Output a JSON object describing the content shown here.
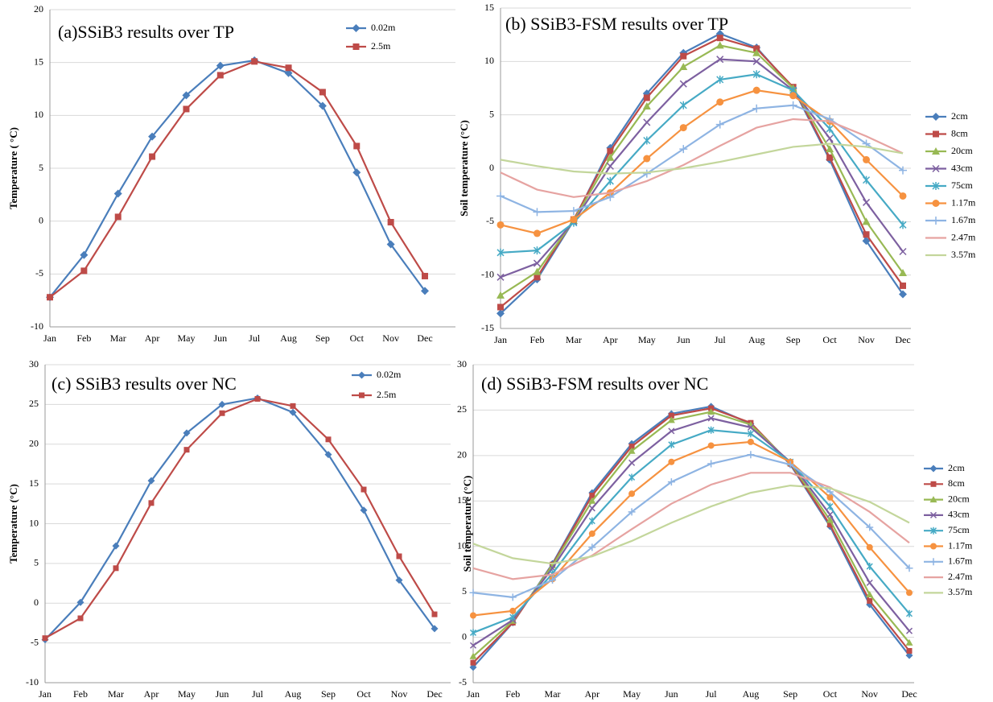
{
  "chart_data": [
    {
      "type": "line",
      "title": "(a)SSiB3 results over TP",
      "y_label": "Temperature  ( °C)",
      "categories": [
        "Jan",
        "Feb",
        "Mar",
        "Apr",
        "May",
        "Jun",
        "Jul",
        "Aug",
        "Sep",
        "Oct",
        "Nov",
        "Dec"
      ],
      "series": [
        {
          "name": "0.02m",
          "color": "#4a7ebb",
          "marker": "diamond",
          "values": [
            -7.2,
            -3.2,
            2.6,
            8.0,
            11.9,
            14.7,
            15.2,
            14.0,
            10.9,
            4.6,
            -2.2,
            -6.6
          ]
        },
        {
          "name": "2.5m",
          "color": "#be4b48",
          "marker": "square",
          "values": [
            -7.2,
            -4.7,
            0.4,
            6.1,
            10.6,
            13.8,
            15.1,
            14.5,
            12.2,
            7.1,
            -0.1,
            -5.2
          ]
        }
      ],
      "ylim": [
        -10,
        20
      ],
      "yticks": [
        -10,
        -5,
        0,
        5,
        10,
        15,
        20
      ],
      "grid": true,
      "legend": "upper right"
    },
    {
      "type": "line",
      "title": "(b)  SSiB3-FSM results over TP",
      "y_label": "Soil temperature (°C)",
      "categories": [
        "Jan",
        "Feb",
        "Mar",
        "Apr",
        "May",
        "Jun",
        "Jul",
        "Aug",
        "Sep",
        "Oct",
        "Nov",
        "Dec"
      ],
      "series": [
        {
          "name": "2cm",
          "color": "#4a7ebb",
          "marker": "diamond",
          "values": [
            -13.6,
            -10.4,
            -4.9,
            1.9,
            7.0,
            10.8,
            12.6,
            11.3,
            7.5,
            0.8,
            -6.8,
            -11.8
          ]
        },
        {
          "name": "8cm",
          "color": "#be4b48",
          "marker": "square",
          "values": [
            -13.0,
            -10.2,
            -4.8,
            1.6,
            6.6,
            10.5,
            12.2,
            11.2,
            7.6,
            1.0,
            -6.2,
            -11.0
          ]
        },
        {
          "name": "20cm",
          "color": "#98b954",
          "marker": "triangle",
          "values": [
            -11.9,
            -9.7,
            -4.9,
            1.0,
            5.8,
            9.5,
            11.5,
            10.8,
            7.5,
            1.8,
            -5.0,
            -9.8
          ]
        },
        {
          "name": "43cm",
          "color": "#7d60a0",
          "marker": "x",
          "values": [
            -10.2,
            -8.9,
            -5.0,
            0.2,
            4.3,
            7.9,
            10.2,
            10.0,
            7.3,
            2.8,
            -3.2,
            -7.8
          ]
        },
        {
          "name": "75cm",
          "color": "#46aac5",
          "marker": "star",
          "values": [
            -7.9,
            -7.7,
            -5.1,
            -1.2,
            2.6,
            5.9,
            8.3,
            8.8,
            7.3,
            3.7,
            -1.1,
            -5.3
          ]
        },
        {
          "name": "1.17m",
          "color": "#f69240",
          "marker": "circle",
          "values": [
            -5.3,
            -6.1,
            -4.8,
            -2.3,
            0.9,
            3.8,
            6.2,
            7.3,
            6.8,
            4.4,
            0.8,
            -2.6
          ]
        },
        {
          "name": "1.67m",
          "color": "#8eb4e3",
          "marker": "plus",
          "values": [
            -2.6,
            -4.1,
            -4.0,
            -2.7,
            -0.5,
            1.8,
            4.1,
            5.6,
            5.9,
            4.6,
            2.3,
            -0.2
          ]
        },
        {
          "name": "2.47m",
          "color": "#e6a3a1",
          "marker": "none",
          "values": [
            -0.4,
            -2.0,
            -2.7,
            -2.3,
            -1.2,
            0.3,
            2.1,
            3.8,
            4.6,
            4.4,
            3.0,
            1.4
          ]
        },
        {
          "name": "3.57m",
          "color": "#c3d69b",
          "marker": "none",
          "values": [
            0.8,
            0.2,
            -0.3,
            -0.5,
            -0.4,
            0.0,
            0.6,
            1.3,
            2.0,
            2.3,
            2.0,
            1.4
          ]
        }
      ],
      "ylim": [
        -15,
        15
      ],
      "yticks": [
        -15,
        -10,
        -5,
        0,
        5,
        10,
        15
      ],
      "grid": true,
      "legend": "right"
    },
    {
      "type": "line",
      "title": "(c)  SSiB3 results over NC",
      "y_label": "Temperature (°C)",
      "categories": [
        "Jan",
        "Feb",
        "Mar",
        "Apr",
        "May",
        "Jun",
        "Jul",
        "Aug",
        "Sep",
        "Oct",
        "Nov",
        "Dec"
      ],
      "series": [
        {
          "name": "0.02m",
          "color": "#4a7ebb",
          "marker": "diamond",
          "values": [
            -4.6,
            0.1,
            7.2,
            15.4,
            21.4,
            25.0,
            25.8,
            24.0,
            18.7,
            11.7,
            2.9,
            -3.2
          ]
        },
        {
          "name": "2.5m",
          "color": "#be4b48",
          "marker": "square",
          "values": [
            -4.4,
            -1.9,
            4.4,
            12.6,
            19.3,
            23.9,
            25.7,
            24.8,
            20.6,
            14.3,
            5.9,
            -1.4
          ]
        }
      ],
      "ylim": [
        -10,
        30
      ],
      "yticks": [
        -10,
        -5,
        0,
        5,
        10,
        15,
        20,
        25,
        30
      ],
      "grid": true,
      "legend": "upper right"
    },
    {
      "type": "line",
      "title": "(d)  SSiB3-FSM results over NC",
      "y_label": "Soil temperature (°C)",
      "categories": [
        "Jan",
        "Feb",
        "Mar",
        "Apr",
        "May",
        "Jun",
        "Jul",
        "Aug",
        "Sep",
        "Oct",
        "Nov",
        "Dec"
      ],
      "series": [
        {
          "name": "2cm",
          "color": "#4a7ebb",
          "marker": "diamond",
          "values": [
            -3.3,
            1.6,
            8.1,
            15.9,
            21.3,
            24.6,
            25.4,
            23.5,
            19.0,
            12.2,
            3.6,
            -2.0
          ]
        },
        {
          "name": "8cm",
          "color": "#be4b48",
          "marker": "square",
          "values": [
            -2.8,
            1.6,
            8.0,
            15.6,
            21.0,
            24.4,
            25.2,
            23.6,
            19.1,
            12.4,
            4.0,
            -1.5
          ]
        },
        {
          "name": "20cm",
          "color": "#98b954",
          "marker": "triangle",
          "values": [
            -2.1,
            1.8,
            7.9,
            15.0,
            20.5,
            23.9,
            24.8,
            23.4,
            19.2,
            12.9,
            4.7,
            -0.6
          ]
        },
        {
          "name": "43cm",
          "color": "#7d60a0",
          "marker": "x",
          "values": [
            -0.9,
            1.9,
            7.6,
            14.2,
            19.2,
            22.7,
            24.1,
            23.1,
            19.3,
            13.5,
            6.0,
            0.7
          ]
        },
        {
          "name": "75cm",
          "color": "#46aac5",
          "marker": "star",
          "values": [
            0.5,
            2.2,
            7.0,
            12.8,
            17.6,
            21.2,
            22.8,
            22.4,
            19.3,
            14.4,
            7.8,
            2.6
          ]
        },
        {
          "name": "1.17m",
          "color": "#f69240",
          "marker": "circle",
          "values": [
            2.4,
            2.9,
            6.4,
            11.4,
            15.8,
            19.3,
            21.1,
            21.5,
            19.3,
            15.4,
            9.9,
            4.9
          ]
        },
        {
          "name": "1.67m",
          "color": "#8eb4e3",
          "marker": "plus",
          "values": [
            4.9,
            4.4,
            6.3,
            9.9,
            13.8,
            17.1,
            19.1,
            20.1,
            19.0,
            16.0,
            12.1,
            7.6
          ]
        },
        {
          "name": "2.47m",
          "color": "#e6a3a1",
          "marker": "none",
          "values": [
            7.6,
            6.4,
            6.9,
            9.0,
            11.9,
            14.7,
            16.8,
            18.1,
            18.1,
            16.5,
            13.8,
            10.4
          ]
        },
        {
          "name": "3.57m",
          "color": "#c3d69b",
          "marker": "none",
          "values": [
            10.3,
            8.7,
            8.1,
            8.9,
            10.6,
            12.6,
            14.4,
            15.9,
            16.7,
            16.4,
            14.9,
            12.6
          ]
        }
      ],
      "ylim": [
        -5,
        30
      ],
      "yticks": [
        -5,
        0,
        5,
        10,
        15,
        20,
        25,
        30
      ],
      "grid": true,
      "legend": "right"
    }
  ]
}
